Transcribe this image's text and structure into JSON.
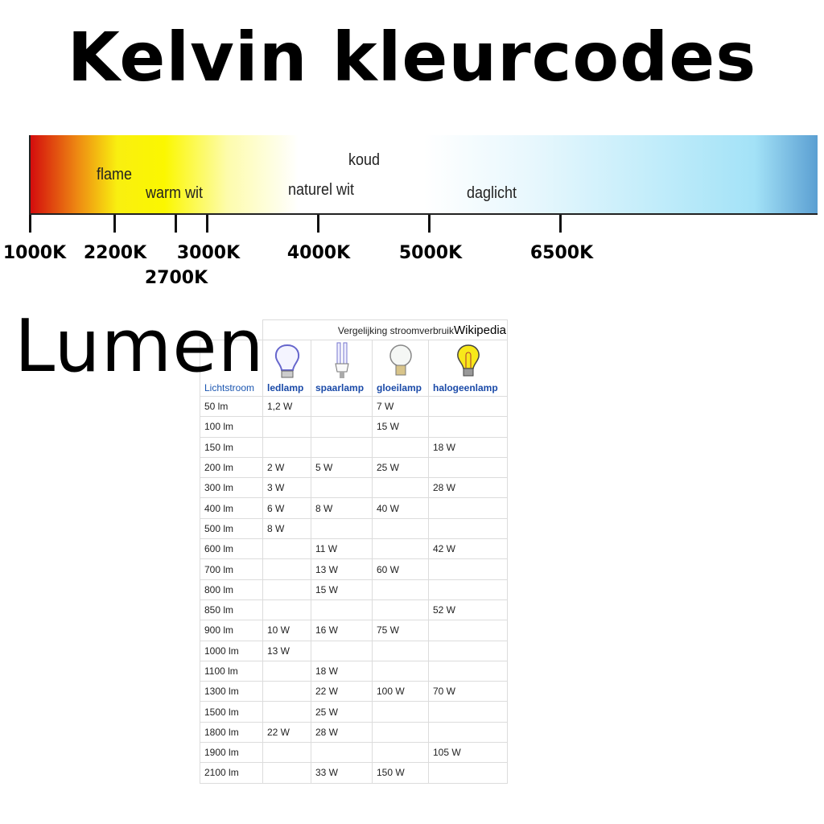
{
  "title": "Kelvin kleurcodes",
  "spectrum": {
    "labels": {
      "flame": "flame",
      "warm": "warm wit",
      "koud": "koud",
      "naturel": "naturel wit",
      "daglicht": "daglicht"
    },
    "ticks": [
      "1000K",
      "2200K",
      "2700K",
      "3000K",
      "4000K",
      "5000K",
      "6500K"
    ]
  },
  "lumen_title": "Lumen",
  "table": {
    "caption": "Vergelijking stroomverbruik",
    "source": "Wikipedia",
    "headers": [
      "Lichtstroom",
      "ledlamp",
      "spaarlamp",
      "gloeilamp",
      "halogeenlamp"
    ],
    "rows": [
      [
        "50 lm",
        "1,2 W",
        "",
        "7 W",
        ""
      ],
      [
        "100 lm",
        "",
        "",
        "15 W",
        ""
      ],
      [
        "150 lm",
        "",
        "",
        "",
        "18 W"
      ],
      [
        "200 lm",
        "2 W",
        "5 W",
        "25 W",
        ""
      ],
      [
        "300 lm",
        "3 W",
        "",
        "",
        "28 W"
      ],
      [
        "400 lm",
        "6 W",
        "8 W",
        "40 W",
        ""
      ],
      [
        "500 lm",
        "8 W",
        "",
        "",
        ""
      ],
      [
        "600 lm",
        "",
        "11 W",
        "",
        "42 W"
      ],
      [
        "700 lm",
        "",
        "13 W",
        "60 W",
        ""
      ],
      [
        "800 lm",
        "",
        "15 W",
        "",
        ""
      ],
      [
        "850 lm",
        "",
        "",
        "",
        "52 W"
      ],
      [
        "900 lm",
        "10 W",
        "16 W",
        "75 W",
        ""
      ],
      [
        "1000 lm",
        "13 W",
        "",
        "",
        ""
      ],
      [
        "1100 lm",
        "",
        "18 W",
        "",
        ""
      ],
      [
        "1300 lm",
        "",
        "22 W",
        "100 W",
        "70 W"
      ],
      [
        "1500 lm",
        "",
        "25 W",
        "",
        ""
      ],
      [
        "1800 lm",
        "22 W",
        "28 W",
        "",
        ""
      ],
      [
        "1900 lm",
        "",
        "",
        "",
        "105 W"
      ],
      [
        "2100 lm",
        "",
        "33 W",
        "150 W",
        ""
      ]
    ]
  }
}
